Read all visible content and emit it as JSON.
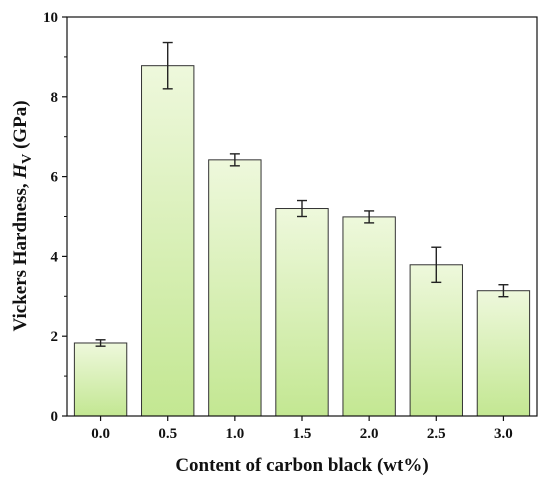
{
  "chart_data": {
    "type": "bar",
    "xlabel": "Content of carbon black (wt%)",
    "ylabel": {
      "prefix": "Vickers Hardness, ",
      "symbol": "H",
      "subscript": "V",
      "suffix": " (GPa)"
    },
    "categories": [
      "0.0",
      "0.5",
      "1.0",
      "1.5",
      "2.0",
      "2.5",
      "3.0"
    ],
    "values": [
      1.83,
      8.78,
      6.42,
      5.2,
      4.99,
      3.79,
      3.14
    ],
    "errors": [
      0.08,
      0.58,
      0.15,
      0.2,
      0.15,
      0.44,
      0.15
    ],
    "ylim": [
      0,
      10
    ],
    "yticks": [
      "0",
      "2",
      "4",
      "6",
      "8",
      "10"
    ],
    "grid": false,
    "legend": false,
    "bar_fill_top": "#eef8dc",
    "bar_fill_bottom": "#c3e792",
    "bar_stroke": "#333333",
    "errorbar_color": "#222222"
  }
}
